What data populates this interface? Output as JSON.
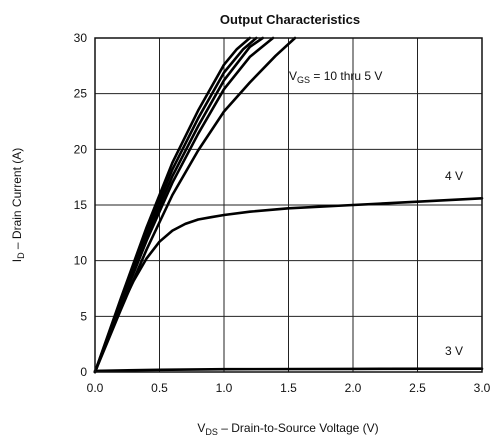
{
  "chart_data": {
    "type": "line",
    "title": "Output Characteristics",
    "xlabel": {
      "main": "V",
      "sub": "DS",
      "rest": " – Drain-to-Source Voltage (V)"
    },
    "ylabel": {
      "main": "I",
      "sub": "D",
      "rest": " – Drain Current (A)"
    },
    "xlim": [
      0,
      3.0
    ],
    "ylim": [
      0,
      30
    ],
    "x_ticks": [
      "0.0",
      "0.5",
      "1.0",
      "1.5",
      "2.0",
      "2.5",
      "3.0"
    ],
    "y_ticks": [
      "0",
      "5",
      "10",
      "15",
      "20",
      "25",
      "30"
    ],
    "x_tick_values": [
      0,
      0.5,
      1.0,
      1.5,
      2.0,
      2.5,
      3.0
    ],
    "y_tick_values": [
      0,
      5,
      10,
      15,
      20,
      25,
      30
    ],
    "grid": true,
    "annotations": {
      "vgs_main": "V",
      "vgs_sub": "GS",
      "vgs_rest": " = 10 thru 5 V",
      "label_4v": "4 V",
      "label_3v": "3 V"
    },
    "series": [
      {
        "x": [
          0,
          0.2,
          0.4,
          0.6,
          0.8,
          1.0,
          1.1,
          1.2
        ],
        "y": [
          0,
          6.6,
          13.0,
          18.8,
          23.5,
          27.6,
          29.0,
          30.0
        ]
      },
      {
        "x": [
          0,
          0.2,
          0.4,
          0.6,
          0.8,
          1.0,
          1.15,
          1.25
        ],
        "y": [
          0,
          6.4,
          12.6,
          18.2,
          22.8,
          26.9,
          29.0,
          30.0
        ]
      },
      {
        "x": [
          0,
          0.2,
          0.4,
          0.6,
          0.8,
          1.0,
          1.2,
          1.3
        ],
        "y": [
          0,
          6.2,
          12.2,
          17.6,
          22.1,
          26.2,
          29.2,
          30.0
        ]
      },
      {
        "x": [
          0,
          0.2,
          0.4,
          0.6,
          0.8,
          1.0,
          1.2,
          1.38
        ],
        "y": [
          0,
          6.0,
          11.8,
          17.0,
          21.4,
          25.4,
          28.3,
          30.0
        ]
      },
      {
        "x": [
          0,
          0.2,
          0.4,
          0.6,
          0.8,
          1.0,
          1.2,
          1.4,
          1.55
        ],
        "y": [
          0,
          5.6,
          11.0,
          15.9,
          19.9,
          23.4,
          26.0,
          28.4,
          30.0
        ]
      },
      {
        "x": [
          0,
          0.1,
          0.2,
          0.3,
          0.4,
          0.5,
          0.6,
          0.7,
          0.8,
          0.9,
          1.0,
          1.2,
          1.5,
          2.0,
          2.5,
          3.0
        ],
        "y": [
          0,
          3.0,
          5.8,
          8.2,
          10.2,
          11.7,
          12.7,
          13.3,
          13.7,
          13.9,
          14.1,
          14.4,
          14.7,
          15.0,
          15.3,
          15.6
        ]
      },
      {
        "x": [
          0,
          0.5,
          1.0,
          2.0,
          3.0
        ],
        "y": [
          0.1,
          0.2,
          0.25,
          0.28,
          0.3
        ]
      }
    ]
  }
}
